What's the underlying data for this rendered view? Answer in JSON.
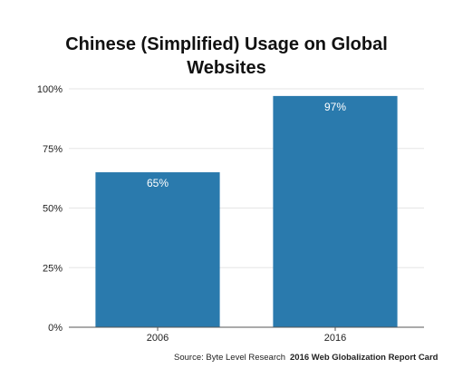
{
  "chart_data": {
    "type": "bar",
    "title_lines": [
      "Chinese (Simplified) Usage on Global",
      "Websites"
    ],
    "xlabel": "",
    "ylabel": "",
    "categories": [
      "2006",
      "2016"
    ],
    "values": [
      65,
      97
    ],
    "data_labels": [
      "65%",
      "97%"
    ],
    "ylim": [
      0,
      100
    ],
    "yticks": [
      0,
      25,
      50,
      75,
      100
    ],
    "ytick_labels": [
      "0%",
      "25%",
      "50%",
      "75%",
      "100%"
    ],
    "grid": true,
    "legend": "none",
    "bar_color": "#2a7aad",
    "grid_color": "#e6e6e6",
    "axis_color": "#555555"
  },
  "footer": {
    "source": "Source: Byte Level Research",
    "report": "2016 Web Globalization Report Card"
  }
}
